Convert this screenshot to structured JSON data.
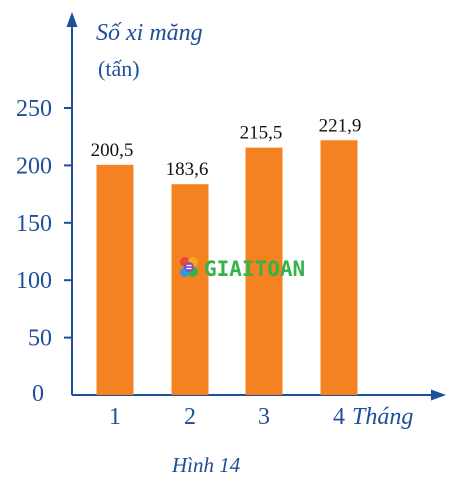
{
  "chart_data": {
    "type": "bar",
    "categories": [
      "1",
      "2",
      "3",
      "4"
    ],
    "values": [
      200.5,
      183.6,
      215.5,
      221.9
    ],
    "value_labels": [
      "200,5",
      "183,6",
      "215,5",
      "221,9"
    ],
    "ylabel": "Số xi măng",
    "y_unit": "(tấn)",
    "xlabel": "Tháng",
    "yticks": [
      0,
      50,
      100,
      150,
      200,
      250
    ],
    "ylim": [
      0,
      250
    ],
    "grid": false,
    "legend": "none",
    "caption": "Hình 14",
    "colors": {
      "bar": "#f58220",
      "axis": "#1f4e9a",
      "text": "#1f4e9a",
      "data_label": "#111111"
    }
  },
  "watermark": {
    "text": "GIAITOAN",
    "color": "#35b24a",
    "logo_icon": "giaitoan-logo-icon"
  }
}
